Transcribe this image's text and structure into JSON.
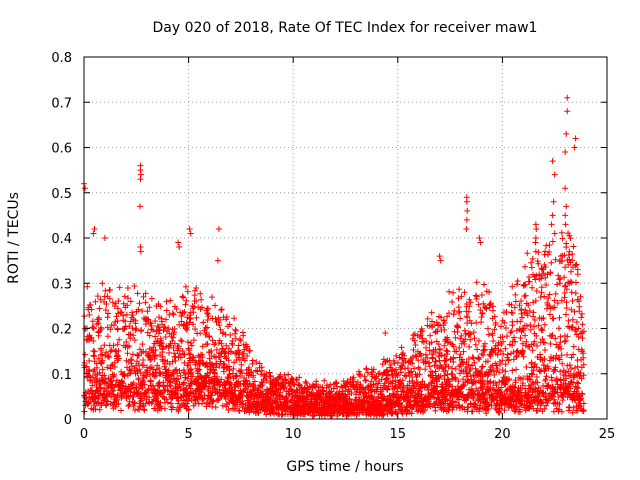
{
  "chart_data": {
    "type": "scatter",
    "title": "Day 020 of 2018, Rate Of TEC Index for receiver maw1",
    "xlabel": "GPS time / hours",
    "ylabel": "ROTI / TECUs",
    "xlim": [
      0,
      25
    ],
    "ylim": [
      0,
      0.8
    ],
    "xticks": [
      "0",
      "5",
      "10",
      "15",
      "20",
      "25"
    ],
    "yticks": [
      "0",
      "0.1",
      "0.2",
      "0.3",
      "0.4",
      "0.5",
      "0.6",
      "0.7",
      "0.8"
    ],
    "grid": true,
    "marker": "+",
    "color": "#ff0000",
    "x_range_of_data": [
      0,
      23.9
    ],
    "envelope": {
      "x": [
        0,
        1,
        2,
        3,
        4,
        5,
        6,
        7,
        8,
        9,
        10,
        11,
        12,
        13,
        14,
        15,
        16,
        17,
        18,
        19,
        20,
        21,
        22,
        23,
        23.9
      ],
      "baseline": [
        0.04,
        0.06,
        0.06,
        0.05,
        0.04,
        0.05,
        0.07,
        0.05,
        0.03,
        0.03,
        0.02,
        0.02,
        0.02,
        0.02,
        0.02,
        0.03,
        0.04,
        0.05,
        0.05,
        0.04,
        0.04,
        0.04,
        0.05,
        0.05,
        0.04
      ],
      "upper": [
        0.28,
        0.3,
        0.3,
        0.28,
        0.25,
        0.3,
        0.28,
        0.25,
        0.15,
        0.1,
        0.1,
        0.08,
        0.08,
        0.1,
        0.12,
        0.15,
        0.2,
        0.25,
        0.3,
        0.3,
        0.25,
        0.35,
        0.4,
        0.45,
        0.3
      ]
    },
    "highlights": [
      {
        "x": 0.0,
        "y": 0.52
      },
      {
        "x": 0.05,
        "y": 0.51
      },
      {
        "x": 0.5,
        "y": 0.42
      },
      {
        "x": 0.45,
        "y": 0.41
      },
      {
        "x": 1.0,
        "y": 0.4
      },
      {
        "x": 2.7,
        "y": 0.56
      },
      {
        "x": 2.7,
        "y": 0.55
      },
      {
        "x": 2.72,
        "y": 0.54
      },
      {
        "x": 2.7,
        "y": 0.53
      },
      {
        "x": 2.68,
        "y": 0.47
      },
      {
        "x": 2.7,
        "y": 0.38
      },
      {
        "x": 2.72,
        "y": 0.37
      },
      {
        "x": 4.5,
        "y": 0.39
      },
      {
        "x": 4.55,
        "y": 0.38
      },
      {
        "x": 5.05,
        "y": 0.42
      },
      {
        "x": 5.1,
        "y": 0.41
      },
      {
        "x": 6.45,
        "y": 0.42
      },
      {
        "x": 6.4,
        "y": 0.35
      },
      {
        "x": 14.4,
        "y": 0.19
      },
      {
        "x": 17.0,
        "y": 0.36
      },
      {
        "x": 17.05,
        "y": 0.35
      },
      {
        "x": 18.3,
        "y": 0.49
      },
      {
        "x": 18.3,
        "y": 0.48
      },
      {
        "x": 18.32,
        "y": 0.46
      },
      {
        "x": 18.3,
        "y": 0.44
      },
      {
        "x": 18.28,
        "y": 0.42
      },
      {
        "x": 18.9,
        "y": 0.4
      },
      {
        "x": 18.95,
        "y": 0.39
      },
      {
        "x": 21.0,
        "y": 0.2
      },
      {
        "x": 21.6,
        "y": 0.43
      },
      {
        "x": 21.62,
        "y": 0.42
      },
      {
        "x": 21.6,
        "y": 0.4
      },
      {
        "x": 21.58,
        "y": 0.39
      },
      {
        "x": 21.6,
        "y": 0.37
      },
      {
        "x": 22.4,
        "y": 0.57
      },
      {
        "x": 22.5,
        "y": 0.54
      },
      {
        "x": 22.45,
        "y": 0.48
      },
      {
        "x": 22.4,
        "y": 0.45
      },
      {
        "x": 22.35,
        "y": 0.43
      },
      {
        "x": 22.5,
        "y": 0.41
      },
      {
        "x": 23.0,
        "y": 0.51
      },
      {
        "x": 23.05,
        "y": 0.47
      },
      {
        "x": 23.0,
        "y": 0.45
      },
      {
        "x": 23.02,
        "y": 0.43
      },
      {
        "x": 23.1,
        "y": 0.71
      },
      {
        "x": 23.1,
        "y": 0.68
      },
      {
        "x": 23.05,
        "y": 0.63
      },
      {
        "x": 23.0,
        "y": 0.59
      },
      {
        "x": 23.5,
        "y": 0.62
      },
      {
        "x": 23.45,
        "y": 0.6
      },
      {
        "x": 23.6,
        "y": 0.33
      },
      {
        "x": 23.2,
        "y": 0.37
      },
      {
        "x": 22.8,
        "y": 0.36
      }
    ]
  }
}
